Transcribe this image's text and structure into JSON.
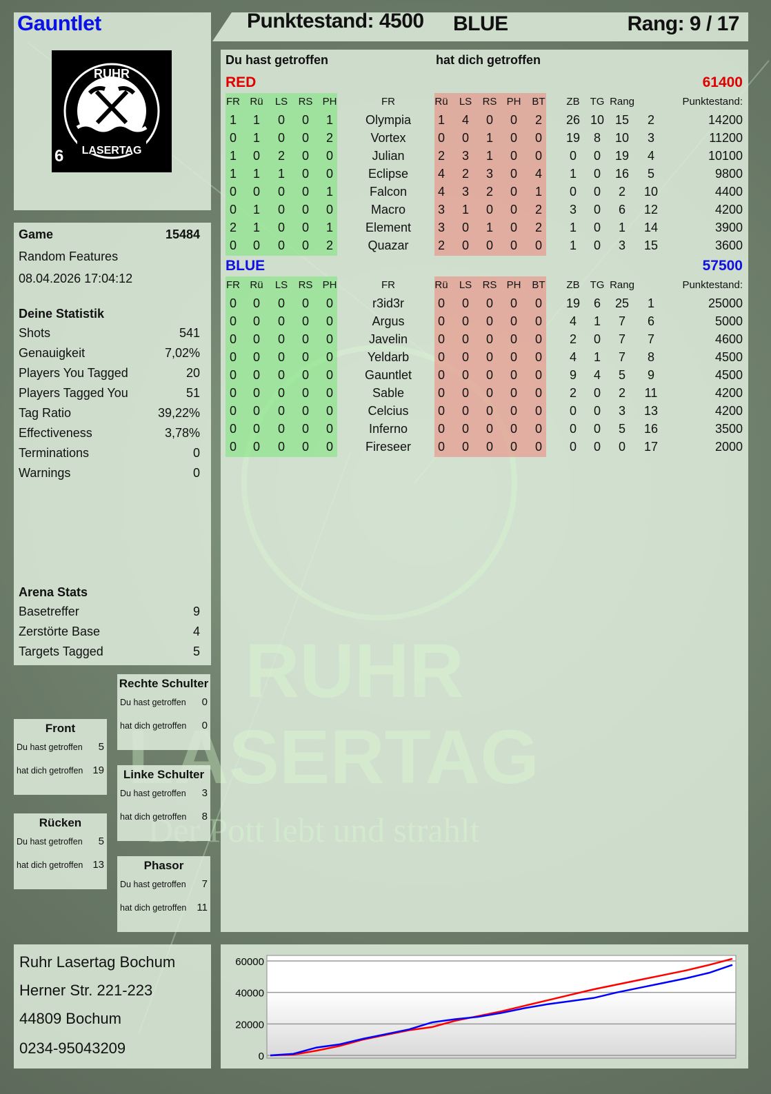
{
  "player": {
    "name": "Gauntlet",
    "badge_number": "6"
  },
  "logo": {
    "text_top": "RUHR",
    "text_bottom": "LASERTAG"
  },
  "header": {
    "score": "Punktestand: 4500",
    "team": "BLUE",
    "rank": "Rang: 9 / 17"
  },
  "table": {
    "you_hit_label": "Du hast getroffen",
    "hit_you_label": "hat dich getroffen",
    "columns": [
      "FR",
      "Rü",
      "LS",
      "RS",
      "PH",
      "",
      "FR",
      "Rü",
      "LS",
      "RS",
      "PH",
      "BT",
      "ZB",
      "TG",
      "Rang",
      "Punktestand:"
    ],
    "teams": [
      {
        "name": "RED",
        "score": "61400",
        "color": "#e00000",
        "rows": [
          [
            "1",
            "1",
            "0",
            "0",
            "1",
            "Olympia",
            "1",
            "4",
            "0",
            "0",
            "2",
            "26",
            "10",
            "15",
            "2",
            "14200"
          ],
          [
            "0",
            "1",
            "0",
            "0",
            "2",
            "Vortex",
            "0",
            "0",
            "1",
            "0",
            "0",
            "19",
            "8",
            "10",
            "3",
            "11200"
          ],
          [
            "1",
            "0",
            "2",
            "0",
            "0",
            "Julian",
            "2",
            "3",
            "1",
            "0",
            "0",
            "0",
            "0",
            "19",
            "4",
            "10100"
          ],
          [
            "1",
            "1",
            "1",
            "0",
            "0",
            "Eclipse",
            "4",
            "2",
            "3",
            "0",
            "4",
            "1",
            "0",
            "16",
            "5",
            "9800"
          ],
          [
            "0",
            "0",
            "0",
            "0",
            "1",
            "Falcon",
            "4",
            "3",
            "2",
            "0",
            "1",
            "0",
            "0",
            "2",
            "10",
            "4400"
          ],
          [
            "0",
            "1",
            "0",
            "0",
            "0",
            "Macro",
            "3",
            "1",
            "0",
            "0",
            "2",
            "3",
            "0",
            "6",
            "12",
            "4200"
          ],
          [
            "2",
            "1",
            "0",
            "0",
            "1",
            "Element",
            "3",
            "0",
            "1",
            "0",
            "2",
            "1",
            "0",
            "1",
            "14",
            "3900"
          ],
          [
            "0",
            "0",
            "0",
            "0",
            "2",
            "Quazar",
            "2",
            "0",
            "0",
            "0",
            "0",
            "1",
            "0",
            "3",
            "15",
            "3600"
          ]
        ]
      },
      {
        "name": "BLUE",
        "score": "57500",
        "color": "#1010e0",
        "rows": [
          [
            "0",
            "0",
            "0",
            "0",
            "0",
            "r3id3r",
            "0",
            "0",
            "0",
            "0",
            "0",
            "19",
            "6",
            "25",
            "1",
            "25000"
          ],
          [
            "0",
            "0",
            "0",
            "0",
            "0",
            "Argus",
            "0",
            "0",
            "0",
            "0",
            "0",
            "4",
            "1",
            "7",
            "6",
            "5000"
          ],
          [
            "0",
            "0",
            "0",
            "0",
            "0",
            "Javelin",
            "0",
            "0",
            "0",
            "0",
            "0",
            "2",
            "0",
            "7",
            "7",
            "4600"
          ],
          [
            "0",
            "0",
            "0",
            "0",
            "0",
            "Yeldarb",
            "0",
            "0",
            "0",
            "0",
            "0",
            "4",
            "1",
            "7",
            "8",
            "4500"
          ],
          [
            "0",
            "0",
            "0",
            "0",
            "0",
            "Gauntlet",
            "0",
            "0",
            "0",
            "0",
            "0",
            "9",
            "4",
            "5",
            "9",
            "4500"
          ],
          [
            "0",
            "0",
            "0",
            "0",
            "0",
            "Sable",
            "0",
            "0",
            "0",
            "0",
            "0",
            "2",
            "0",
            "2",
            "11",
            "4200"
          ],
          [
            "0",
            "0",
            "0",
            "0",
            "0",
            "Celcius",
            "0",
            "0",
            "0",
            "0",
            "0",
            "0",
            "0",
            "3",
            "13",
            "4200"
          ],
          [
            "0",
            "0",
            "0",
            "0",
            "0",
            "Inferno",
            "0",
            "0",
            "0",
            "0",
            "0",
            "0",
            "0",
            "5",
            "16",
            "3500"
          ],
          [
            "0",
            "0",
            "0",
            "0",
            "0",
            "Fireseer",
            "0",
            "0",
            "0",
            "0",
            "0",
            "0",
            "0",
            "0",
            "17",
            "2000"
          ]
        ]
      }
    ]
  },
  "game": {
    "label": "Game",
    "id": "15484",
    "mode": "Random Features",
    "datetime": "08.04.2026 17:04:12"
  },
  "stats": {
    "title": "Deine Statistik",
    "items": [
      {
        "label": "Shots",
        "value": "541"
      },
      {
        "label": "Genauigkeit",
        "value": "7,02%"
      },
      {
        "label": "Players You Tagged",
        "value": "20"
      },
      {
        "label": "Players Tagged You",
        "value": "51"
      },
      {
        "label": "Tag Ratio",
        "value": "39,22%"
      },
      {
        "label": "Effectiveness",
        "value": "3,78%"
      },
      {
        "label": "Terminations",
        "value": "0"
      },
      {
        "label": "Warnings",
        "value": "0"
      }
    ]
  },
  "arena": {
    "title": "Arena Stats",
    "items": [
      {
        "label": "Basetreffer",
        "value": "9"
      },
      {
        "label": "Zerstörte Base",
        "value": "4"
      },
      {
        "label": "Targets Tagged",
        "value": "5"
      }
    ]
  },
  "zones": {
    "you_hit": "Du hast getroffen",
    "hit_you": "hat dich getroffen",
    "items": [
      {
        "name": "Rechte Schulter",
        "you_hit": "0",
        "hit_you": "0"
      },
      {
        "name": "Front",
        "you_hit": "5",
        "hit_you": "19"
      },
      {
        "name": "Linke Schulter",
        "you_hit": "3",
        "hit_you": "8"
      },
      {
        "name": "Rücken",
        "you_hit": "5",
        "hit_you": "13"
      },
      {
        "name": "Phasor",
        "you_hit": "7",
        "hit_you": "11"
      }
    ]
  },
  "address": [
    "Ruhr Lasertag Bochum",
    "Herner Str. 221-223",
    "44809 Bochum",
    "0234-95043209"
  ],
  "watermark": {
    "line1": "RUHR",
    "line2": "LASERTAG",
    "slogan": "Der Pott lebt und strahlt"
  },
  "chart_data": {
    "type": "line",
    "ylim": [
      0,
      62000
    ],
    "yticks": [
      "0",
      "20000",
      "40000",
      "60000"
    ],
    "grid": true,
    "series": [
      {
        "color": "#ff0000",
        "values": [
          0,
          500,
          3000,
          6000,
          10000,
          13000,
          16000,
          18000,
          22000,
          25000,
          28000,
          31500,
          35000,
          38500,
          42000,
          45000,
          48000,
          51000,
          54000,
          57500,
          61400
        ]
      },
      {
        "color": "#0000ff",
        "values": [
          0,
          1000,
          5000,
          7000,
          10500,
          13500,
          16500,
          21000,
          23000,
          24500,
          27000,
          30000,
          32500,
          34500,
          36500,
          40000,
          43000,
          46000,
          49000,
          52500,
          57500
        ]
      }
    ]
  }
}
